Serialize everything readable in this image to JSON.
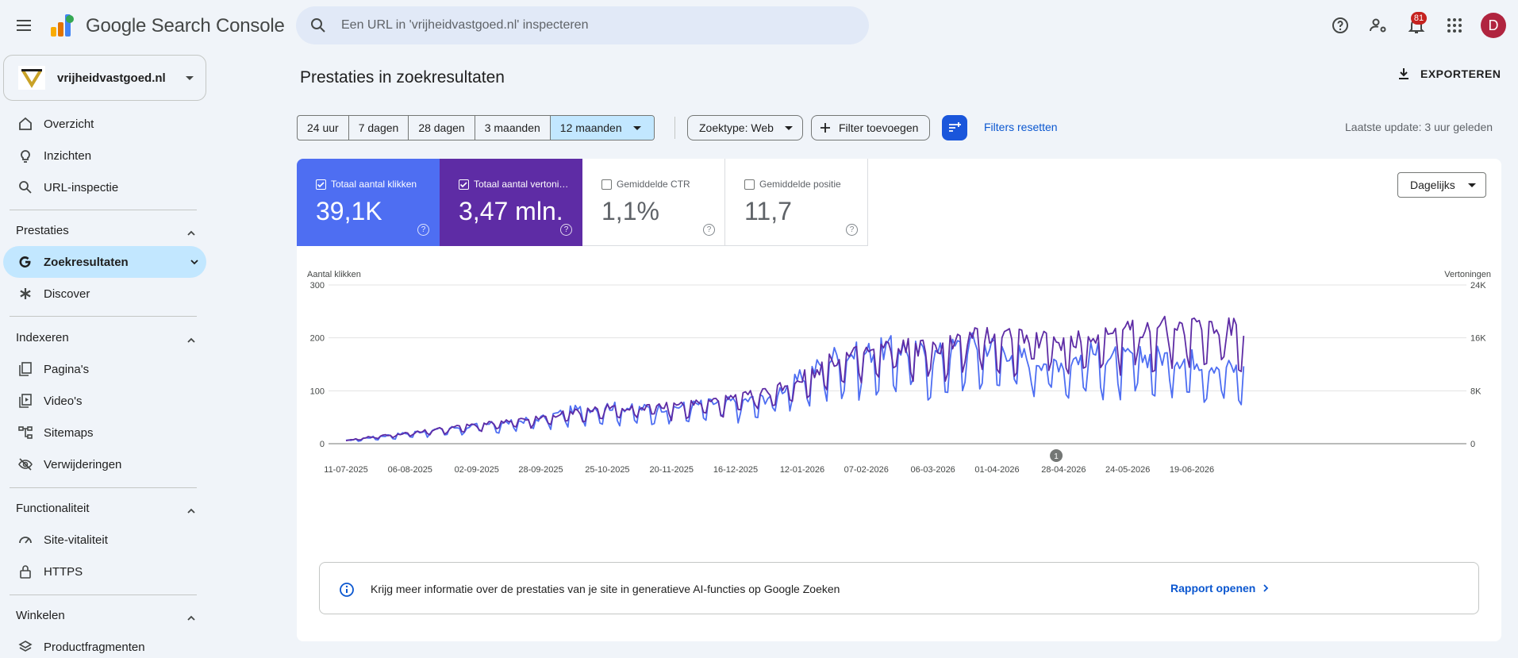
{
  "app": {
    "title": "Google Search Console",
    "search_placeholder": "Een URL in 'vrijheidvastgoed.nl' inspecteren",
    "notification_count": "81",
    "avatar_letter": "D"
  },
  "property": {
    "name": "vrijheidvastgoed.nl"
  },
  "sidebar": {
    "top_items": [
      {
        "label": "Overzicht",
        "icon": "home-icon"
      },
      {
        "label": "Inzichten",
        "icon": "lightbulb-icon"
      },
      {
        "label": "URL-inspectie",
        "icon": "search-icon"
      }
    ],
    "sections": [
      {
        "title": "Prestaties",
        "items": [
          {
            "label": "Zoekresultaten",
            "icon": "google-g-icon",
            "active": true
          },
          {
            "label": "Discover",
            "icon": "asterisk-icon"
          }
        ]
      },
      {
        "title": "Indexeren",
        "items": [
          {
            "label": "Pagina's",
            "icon": "pages-icon"
          },
          {
            "label": "Video's",
            "icon": "video-icon"
          },
          {
            "label": "Sitemaps",
            "icon": "sitemap-icon"
          },
          {
            "label": "Verwijderingen",
            "icon": "eye-off-icon"
          }
        ]
      },
      {
        "title": "Functionaliteit",
        "items": [
          {
            "label": "Site-vitaliteit",
            "icon": "speed-icon"
          },
          {
            "label": "HTTPS",
            "icon": "lock-icon"
          }
        ]
      },
      {
        "title": "Winkelen",
        "items": [
          {
            "label": "Productfragmenten",
            "icon": "layers-icon"
          }
        ]
      }
    ]
  },
  "main": {
    "title": "Prestaties in zoekresultaten",
    "export_label": "EXPORTEREN",
    "ranges": [
      "24 uur",
      "7 dagen",
      "28 dagen",
      "3 maanden",
      "12 maanden"
    ],
    "selected_range": "12 maanden",
    "search_type": "Zoektype: Web",
    "add_filter": "Filter toevoegen",
    "reset_filters": "Filters resetten",
    "last_update": "Laatste update: 3 uur geleden",
    "granularity": "Dagelijks"
  },
  "metrics": [
    {
      "label": "Totaal aantal klikken",
      "value": "39,1K",
      "checked": true,
      "color": "#4e6ef2"
    },
    {
      "label": "Totaal aantal vertoningen",
      "value": "3,47 mln.",
      "checked": true,
      "color": "#5e2ca5"
    },
    {
      "label": "Gemiddelde CTR",
      "value": "1,1%",
      "checked": false
    },
    {
      "label": "Gemiddelde positie",
      "value": "11,7",
      "checked": false
    }
  ],
  "chart_data": {
    "type": "line",
    "left_axis": {
      "label": "Aantal klikken",
      "ticks": [
        "0",
        "100",
        "200",
        "300"
      ],
      "min": 0,
      "max": 300
    },
    "right_axis": {
      "label": "Vertoningen",
      "ticks": [
        "0",
        "8K",
        "16K",
        "24K"
      ],
      "min": 0,
      "max": 24000
    },
    "x_ticks": [
      "11-07-2025",
      "06-08-2025",
      "02-09-2025",
      "28-09-2025",
      "25-10-2025",
      "20-11-2025",
      "16-12-2025",
      "12-01-2026",
      "07-02-2026",
      "06-03-2026",
      "01-04-2026",
      "28-04-2026",
      "24-05-2026",
      "19-06-2026"
    ],
    "annotation": {
      "label": "1",
      "date": "25-04-2026"
    },
    "grid": true,
    "series": [
      {
        "name": "Klikken",
        "axis": "left",
        "color": "#4e6ef2",
        "x": [
          "11-07-2025",
          "20-07-2025",
          "06-08-2025",
          "20-08-2025",
          "02-09-2025",
          "15-09-2025",
          "28-09-2025",
          "10-10-2025",
          "25-10-2025",
          "05-11-2025",
          "20-11-2025",
          "01-12-2025",
          "16-12-2025",
          "28-12-2025",
          "12-01-2026",
          "25-01-2026",
          "07-02-2026",
          "20-02-2026",
          "06-03-2026",
          "20-03-2026",
          "01-04-2026",
          "15-04-2026",
          "28-04-2026",
          "10-05-2026",
          "24-05-2026",
          "05-06-2026",
          "19-06-2026",
          "10-07-2026"
        ],
        "values": [
          5,
          10,
          18,
          25,
          30,
          35,
          42,
          55,
          62,
          58,
          60,
          65,
          70,
          75,
          110,
          145,
          150,
          160,
          145,
          165,
          160,
          140,
          135,
          150,
          140,
          145,
          140,
          120
        ]
      },
      {
        "name": "Vertoningen",
        "axis": "right",
        "color": "#5e2ca5",
        "x": [
          "11-07-2025",
          "20-07-2025",
          "06-08-2025",
          "20-08-2025",
          "02-09-2025",
          "15-09-2025",
          "28-09-2025",
          "10-10-2025",
          "25-10-2025",
          "05-11-2025",
          "20-11-2025",
          "01-12-2025",
          "16-12-2025",
          "28-12-2025",
          "12-01-2026",
          "25-01-2026",
          "07-02-2026",
          "20-02-2026",
          "06-03-2026",
          "20-03-2026",
          "01-04-2026",
          "15-04-2026",
          "28-04-2026",
          "10-05-2026",
          "24-05-2026",
          "05-06-2026",
          "19-06-2026",
          "10-07-2026"
        ],
        "values": [
          400,
          900,
          1500,
          2100,
          2600,
          3000,
          3500,
          4300,
          4900,
          5000,
          5200,
          5600,
          6200,
          7000,
          9000,
          11500,
          12500,
          13500,
          13000,
          14500,
          15000,
          14500,
          14000,
          15000,
          15500,
          16000,
          16200,
          15500
        ]
      }
    ]
  },
  "ai_banner": {
    "text": "Krijg meer informatie over de prestaties van je site in generatieve AI-functies op Google Zoeken",
    "link": "Rapport openen"
  }
}
